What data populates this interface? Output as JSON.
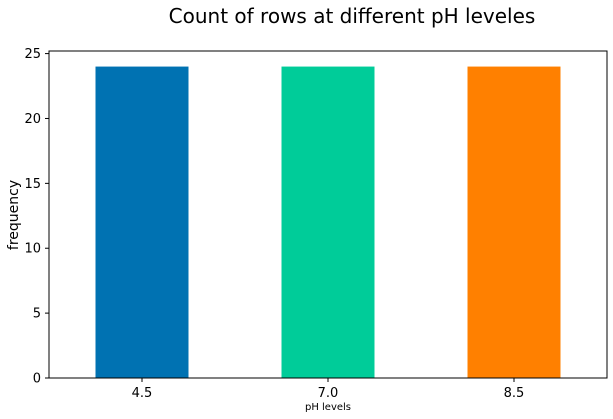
{
  "chart_data": {
    "type": "bar",
    "title": "Count of rows at different pH leveles",
    "categories": [
      "4.5",
      "7.0",
      "8.5"
    ],
    "values": [
      24,
      24,
      24
    ],
    "colors": [
      "#0072b2",
      "#00cc99",
      "#ff8000"
    ],
    "xlabel": "pH levels",
    "ylabel": "frequency",
    "ylim": [
      0,
      25.2
    ],
    "yticks": [
      0,
      5,
      10,
      15,
      20,
      25
    ],
    "ytick_labels": [
      "0",
      "5",
      "10",
      "15",
      "20",
      "25"
    ],
    "grid": false,
    "legend": "none"
  }
}
